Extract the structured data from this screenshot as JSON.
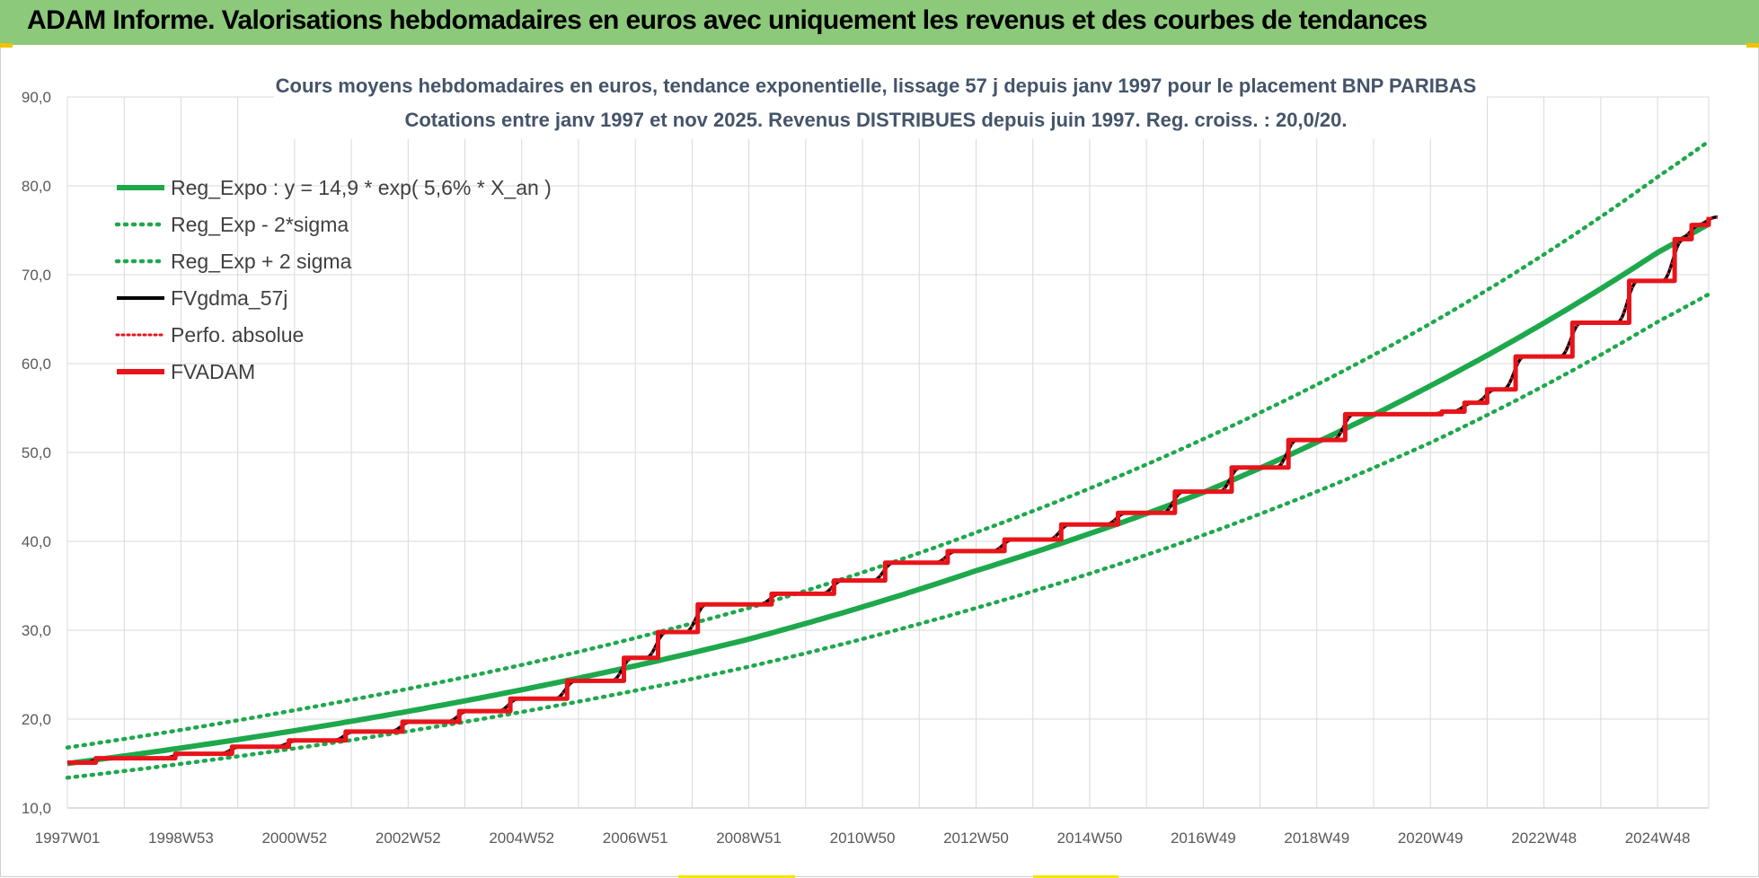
{
  "header": {
    "title": "ADAM Informe. Valorisations hebdomadaires en euros avec uniquement les revenus et des courbes de tendances"
  },
  "colors": {
    "header_bg": "#8cc97a",
    "green": "#1ea84c",
    "black": "#000000",
    "red": "#e8141a",
    "grid": "#d9d9d9",
    "title": "#44546a"
  },
  "chart_data": {
    "type": "line",
    "title": "Cours moyens hebdomadaires en euros, tendance exponentielle, lissage 57 j depuis janv 1997 pour le placement BNP PARIBAS",
    "subtitle": "Cotations entre janv 1997 et nov 2025. Revenus DISTRIBUES depuis juin 1997. Reg. croiss. : 20,0/20.",
    "xlabel": "",
    "ylabel": "",
    "x_range": [
      1997.0,
      2025.9
    ],
    "ylim": [
      10,
      90
    ],
    "y_ticks": [
      "10,0",
      "20,0",
      "30,0",
      "40,0",
      "50,0",
      "60,0",
      "70,0",
      "80,0",
      "90,0"
    ],
    "x_ticks": [
      {
        "label": "1997W01",
        "x": 1997.0
      },
      {
        "label": "1998W53",
        "x": 1999.0
      },
      {
        "label": "2000W52",
        "x": 2001.0
      },
      {
        "label": "2002W52",
        "x": 2003.0
      },
      {
        "label": "2004W52",
        "x": 2005.0
      },
      {
        "label": "2006W51",
        "x": 2007.0
      },
      {
        "label": "2008W51",
        "x": 2009.0
      },
      {
        "label": "2010W50",
        "x": 2011.0
      },
      {
        "label": "2012W50",
        "x": 2013.0
      },
      {
        "label": "2014W50",
        "x": 2015.0
      },
      {
        "label": "2016W49",
        "x": 2017.0
      },
      {
        "label": "2018W49",
        "x": 2019.0
      },
      {
        "label": "2020W49",
        "x": 2021.0
      },
      {
        "label": "2022W48",
        "x": 2023.0
      },
      {
        "label": "2024W48",
        "x": 2025.0
      }
    ],
    "grid": true,
    "legend_position": "top-left",
    "series": [
      {
        "name": "Reg_Expo : y = 14,9 * exp( 5,6% *  X_an )",
        "style": "solid",
        "color": "#1ea84c",
        "x": [
          1997.0,
          2001.0,
          2005.0,
          2009.0,
          2013.0,
          2017.0,
          2021.0,
          2025.0,
          2025.9
        ],
        "y": [
          15.0,
          18.7,
          23.3,
          29.0,
          36.7,
          45.5,
          57.5,
          72.5,
          75.7
        ]
      },
      {
        "name": "Reg_Exp - 2*sigma",
        "style": "dotted",
        "color": "#1ea84c",
        "x": [
          1997.0,
          2001.0,
          2005.0,
          2009.0,
          2013.0,
          2017.0,
          2021.0,
          2025.0,
          2025.9
        ],
        "y": [
          13.4,
          16.7,
          20.8,
          25.9,
          32.5,
          40.7,
          51.1,
          64.7,
          67.8
        ]
      },
      {
        "name": "Reg_Exp + 2 sigma",
        "style": "dotted",
        "color": "#1ea84c",
        "x": [
          1997.0,
          2001.0,
          2005.0,
          2009.0,
          2013.0,
          2017.0,
          2021.0,
          2025.0,
          2025.9
        ],
        "y": [
          16.8,
          21.0,
          26.1,
          32.5,
          41.0,
          51.5,
          64.5,
          81.0,
          85.0
        ]
      },
      {
        "name": "FVgdma_57j",
        "style": "solid",
        "color": "#000000",
        "x": [
          1997.0,
          1998.5,
          2000.5,
          2002.0,
          2004.0,
          2006.5,
          2009.0,
          2011.0,
          2013.0,
          2015.5,
          2017.5,
          2019.5,
          2021.5,
          2023.5,
          2025.9
        ],
        "y": [
          15.0,
          16.0,
          17.5,
          19.0,
          22.0,
          27.0,
          33.0,
          36.0,
          39.5,
          43.0,
          47.0,
          53.0,
          54.8,
          63.0,
          76.0
        ]
      },
      {
        "name": "Perfo. absolue",
        "style": "dotted",
        "color": "#e8141a",
        "x": [
          1997.0,
          1998.5,
          2000.5,
          2002.0,
          2004.0,
          2006.5,
          2009.0,
          2011.0,
          2013.0,
          2015.5,
          2017.5,
          2019.5,
          2021.5,
          2023.5,
          2025.9
        ],
        "y": [
          15.0,
          16.0,
          17.5,
          19.0,
          22.0,
          27.0,
          33.0,
          36.0,
          39.5,
          43.0,
          47.0,
          53.0,
          54.8,
          63.0,
          76.0
        ]
      },
      {
        "name": "FVADAM",
        "style": "step",
        "color": "#e8141a",
        "x": [
          1997.0,
          1997.5,
          1998.9,
          1999.9,
          2000.9,
          2001.9,
          2002.9,
          2003.9,
          2004.8,
          2005.8,
          2006.8,
          2007.4,
          2008.1,
          2009.4,
          2010.5,
          2011.4,
          2012.5,
          2013.5,
          2014.5,
          2015.5,
          2016.5,
          2017.5,
          2018.5,
          2019.5,
          2021.2,
          2021.6,
          2022.0,
          2022.5,
          2023.5,
          2024.5,
          2025.3,
          2025.6,
          2025.9
        ],
        "y": [
          15.1,
          15.6,
          16.1,
          16.9,
          17.6,
          18.6,
          19.7,
          20.9,
          22.3,
          24.3,
          26.9,
          29.8,
          32.9,
          34.1,
          35.6,
          37.6,
          38.9,
          40.2,
          41.9,
          43.2,
          45.6,
          48.3,
          51.4,
          54.3,
          54.6,
          55.6,
          57.1,
          60.8,
          64.6,
          69.3,
          74.0,
          75.6,
          76.5
        ]
      }
    ]
  }
}
